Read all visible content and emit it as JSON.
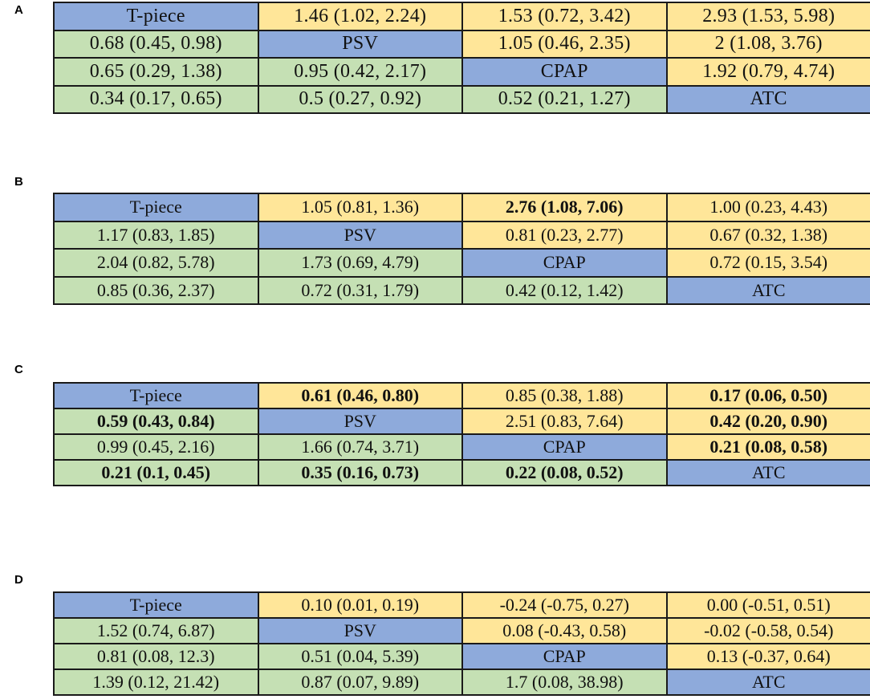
{
  "colors": {
    "diagonal": "#8eaadb",
    "upper_triangle": "#ffe699",
    "lower_triangle": "#c5e0b4"
  },
  "chart_data": [
    {
      "type": "table",
      "panel": "A",
      "rows": [
        [
          {
            "text": "T-piece",
            "kind": "diag"
          },
          {
            "text": "1.46 (1.02, 2.24)",
            "kind": "upper"
          },
          {
            "text": "1.53 (0.72, 3.42)",
            "kind": "upper"
          },
          {
            "text": "2.93 (1.53, 5.98)",
            "kind": "upper"
          }
        ],
        [
          {
            "text": "0.68 (0.45, 0.98)",
            "kind": "lower"
          },
          {
            "text": "PSV",
            "kind": "diag"
          },
          {
            "text": "1.05 (0.46, 2.35)",
            "kind": "upper"
          },
          {
            "text": "2 (1.08, 3.76)",
            "kind": "upper"
          }
        ],
        [
          {
            "text": "0.65 (0.29, 1.38)",
            "kind": "lower"
          },
          {
            "text": "0.95 (0.42, 2.17)",
            "kind": "lower"
          },
          {
            "text": "CPAP",
            "kind": "diag"
          },
          {
            "text": "1.92 (0.79, 4.74)",
            "kind": "upper"
          }
        ],
        [
          {
            "text": "0.34 (0.17, 0.65)",
            "kind": "lower"
          },
          {
            "text": "0.5 (0.27, 0.92)",
            "kind": "lower"
          },
          {
            "text": "0.52 (0.21, 1.27)",
            "kind": "lower"
          },
          {
            "text": "ATC",
            "kind": "diag"
          }
        ]
      ]
    },
    {
      "type": "table",
      "panel": "B",
      "rows": [
        [
          {
            "text": "T-piece",
            "kind": "diag"
          },
          {
            "text": "1.05 (0.81, 1.36)",
            "kind": "upper"
          },
          {
            "text": "2.76 (1.08, 7.06)",
            "kind": "upper",
            "bold": true
          },
          {
            "text": "1.00 (0.23, 4.43)",
            "kind": "upper"
          }
        ],
        [
          {
            "text": "1.17 (0.83, 1.85)",
            "kind": "lower"
          },
          {
            "text": "PSV",
            "kind": "diag"
          },
          {
            "text": "0.81 (0.23, 2.77)",
            "kind": "upper"
          },
          {
            "text": "0.67 (0.32, 1.38)",
            "kind": "upper"
          }
        ],
        [
          {
            "text": "2.04 (0.82, 5.78)",
            "kind": "lower"
          },
          {
            "text": "1.73 (0.69, 4.79)",
            "kind": "lower"
          },
          {
            "text": "CPAP",
            "kind": "diag"
          },
          {
            "text": "0.72 (0.15, 3.54)",
            "kind": "upper"
          }
        ],
        [
          {
            "text": "0.85 (0.36, 2.37)",
            "kind": "lower"
          },
          {
            "text": "0.72 (0.31, 1.79)",
            "kind": "lower"
          },
          {
            "text": "0.42 (0.12, 1.42)",
            "kind": "lower"
          },
          {
            "text": "ATC",
            "kind": "diag"
          }
        ]
      ]
    },
    {
      "type": "table",
      "panel": "C",
      "rows": [
        [
          {
            "text": "T-piece",
            "kind": "diag"
          },
          {
            "text": "0.61 (0.46, 0.80)",
            "kind": "upper",
            "bold": true
          },
          {
            "text": "0.85 (0.38, 1.88)",
            "kind": "upper"
          },
          {
            "text": "0.17 (0.06, 0.50)",
            "kind": "upper",
            "bold": true
          }
        ],
        [
          {
            "text": "0.59 (0.43, 0.84)",
            "kind": "lower",
            "bold": true
          },
          {
            "text": "PSV",
            "kind": "diag"
          },
          {
            "text": "2.51 (0.83, 7.64)",
            "kind": "upper"
          },
          {
            "text": "0.42 (0.20, 0.90)",
            "kind": "upper",
            "bold": true
          }
        ],
        [
          {
            "text": "0.99 (0.45, 2.16)",
            "kind": "lower"
          },
          {
            "text": "1.66 (0.74, 3.71)",
            "kind": "lower"
          },
          {
            "text": "CPAP",
            "kind": "diag"
          },
          {
            "text": "0.21 (0.08, 0.58)",
            "kind": "upper",
            "bold": true
          }
        ],
        [
          {
            "text": "0.21 (0.1, 0.45)",
            "kind": "lower",
            "bold": true
          },
          {
            "text": "0.35 (0.16, 0.73)",
            "kind": "lower",
            "bold": true
          },
          {
            "text": "0.22 (0.08, 0.52)",
            "kind": "lower",
            "bold": true
          },
          {
            "text": "ATC",
            "kind": "diag"
          }
        ]
      ]
    },
    {
      "type": "table",
      "panel": "D",
      "rows": [
        [
          {
            "text": "T-piece",
            "kind": "diag"
          },
          {
            "text": "0.10 (0.01, 0.19)",
            "kind": "upper"
          },
          {
            "text": "-0.24 (-0.75, 0.27)",
            "kind": "upper"
          },
          {
            "text": "0.00 (-0.51, 0.51)",
            "kind": "upper"
          }
        ],
        [
          {
            "text": "1.52 (0.74, 6.87)",
            "kind": "lower"
          },
          {
            "text": "PSV",
            "kind": "diag"
          },
          {
            "text": "0.08 (-0.43, 0.58)",
            "kind": "upper"
          },
          {
            "text": "-0.02 (-0.58, 0.54)",
            "kind": "upper"
          }
        ],
        [
          {
            "text": "0.81 (0.08, 12.3)",
            "kind": "lower"
          },
          {
            "text": "0.51 (0.04, 5.39)",
            "kind": "lower"
          },
          {
            "text": "CPAP",
            "kind": "diag"
          },
          {
            "text": "0.13 (-0.37, 0.64)",
            "kind": "upper"
          }
        ],
        [
          {
            "text": "1.39 (0.12, 21.42)",
            "kind": "lower"
          },
          {
            "text": "0.87 (0.07, 9.89)",
            "kind": "lower"
          },
          {
            "text": "1.7 (0.08, 38.98)",
            "kind": "lower"
          },
          {
            "text": "ATC",
            "kind": "diag"
          }
        ]
      ]
    }
  ]
}
